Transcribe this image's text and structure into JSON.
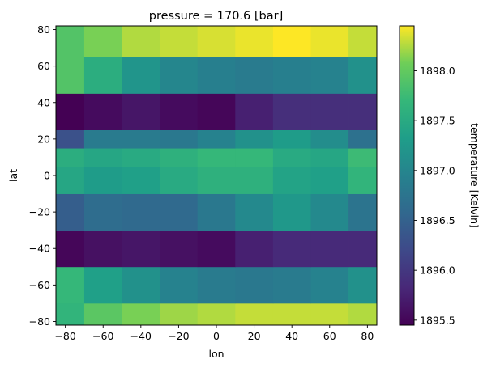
{
  "chart_data": {
    "type": "heatmap",
    "title": "pressure = 170.6 [bar]",
    "xlabel": "lon",
    "ylabel": "lat",
    "colorbar_label": "temperature [Kelvin]",
    "colormap": "viridis",
    "xlim": [
      -85,
      85
    ],
    "ylim": [
      -82,
      82
    ],
    "x_ticks": [
      -80,
      -60,
      -40,
      -20,
      0,
      20,
      40,
      60,
      80
    ],
    "x_tick_labels": [
      "−80",
      "−60",
      "−40",
      "−20",
      "0",
      "20",
      "40",
      "60",
      "80"
    ],
    "y_ticks": [
      -80,
      -60,
      -40,
      -20,
      0,
      20,
      40,
      60,
      80
    ],
    "y_tick_labels": [
      "−80",
      "−60",
      "−40",
      "−20",
      "0",
      "20",
      "40",
      "60",
      "80"
    ],
    "color_range": [
      1895.45,
      1898.45
    ],
    "colorbar_ticks": [
      1895.5,
      1896.0,
      1896.5,
      1897.0,
      1897.5,
      1898.0
    ],
    "colorbar_tick_labels": [
      "1895.5",
      "1896.0",
      "1896.5",
      "1897.0",
      "1897.5",
      "1898.0"
    ],
    "lon": [
      -77.5,
      -60,
      -42.5,
      -20,
      0,
      20,
      40,
      60,
      77.5
    ],
    "lon_edges": [
      -85,
      -70,
      -50,
      -30,
      -10,
      10,
      30,
      50,
      70,
      85
    ],
    "lat": [
      -75,
      -60,
      -40,
      -20,
      0,
      10,
      30,
      50,
      70,
      80
    ],
    "lat_edges": [
      -82,
      -70,
      -50,
      -30,
      -10,
      5,
      15,
      25,
      45,
      65,
      82
    ],
    "values": [
      [
        1897.65,
        1897.95,
        1898.1,
        1898.2,
        1898.25,
        1898.3,
        1898.3,
        1898.3,
        1898.25
      ],
      [
        1897.7,
        1897.35,
        1897.15,
        1896.95,
        1896.85,
        1896.8,
        1896.85,
        1896.95,
        1897.15
      ],
      [
        1895.5,
        1895.6,
        1895.65,
        1895.6,
        1895.55,
        1895.75,
        1895.85,
        1895.85,
        1895.85
      ],
      [
        1896.45,
        1896.65,
        1896.6,
        1896.6,
        1896.8,
        1897.05,
        1897.25,
        1897.05,
        1896.75
      ],
      [
        1897.45,
        1897.3,
        1897.35,
        1897.5,
        1897.6,
        1897.6,
        1897.4,
        1897.35,
        1897.65
      ],
      [
        1897.55,
        1897.45,
        1897.5,
        1897.6,
        1897.7,
        1897.7,
        1897.5,
        1897.45,
        1897.75
      ],
      [
        1896.3,
        1896.85,
        1896.85,
        1896.8,
        1896.95,
        1897.15,
        1897.3,
        1897.1,
        1896.7
      ],
      [
        1895.45,
        1895.55,
        1895.65,
        1895.55,
        1895.5,
        1895.75,
        1895.9,
        1895.9,
        1895.9
      ],
      [
        1897.9,
        1897.55,
        1897.2,
        1897.0,
        1896.9,
        1896.85,
        1896.9,
        1896.95,
        1897.15
      ],
      [
        1897.9,
        1898.1,
        1898.25,
        1898.3,
        1898.35,
        1898.4,
        1898.45,
        1898.4,
        1898.3
      ]
    ]
  }
}
